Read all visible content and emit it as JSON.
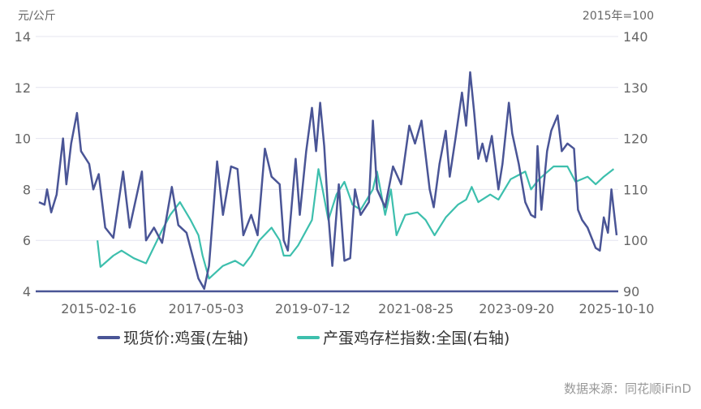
{
  "chart_data": {
    "type": "line",
    "left_unit": "元/公斤",
    "right_unit": "2015年=100",
    "left_ylim": [
      4,
      14
    ],
    "right_ylim": [
      90,
      140
    ],
    "left_ticks": [
      "14",
      "12",
      "10",
      "8",
      "6",
      "4"
    ],
    "right_ticks": [
      "140",
      "130",
      "120",
      "110",
      "100",
      "90"
    ],
    "x_ticks": [
      "2015-02-16",
      "2017-05-03",
      "2019-07-12",
      "2021-08-25",
      "2023-09-20",
      "2025-10-10"
    ],
    "xlim": [
      "2013-11-24",
      "2025-10-10"
    ],
    "grid": true,
    "legend_position": "bottom",
    "colors": {
      "price": "#4a5596",
      "index": "#3dbfad",
      "grid": "#e4e4ef",
      "text": "#666666"
    },
    "series": [
      {
        "name": "现货价:鸡蛋(左轴)",
        "axis": "left",
        "points": [
          [
            "2013-11-24",
            7.5
          ],
          [
            "2014-01-05",
            7.4
          ],
          [
            "2014-01-24",
            8.0
          ],
          [
            "2014-02-24",
            7.1
          ],
          [
            "2014-04-06",
            7.8
          ],
          [
            "2014-05-24",
            10.0
          ],
          [
            "2014-06-18",
            8.2
          ],
          [
            "2014-07-24",
            9.8
          ],
          [
            "2014-09-06",
            11.0
          ],
          [
            "2014-10-06",
            9.5
          ],
          [
            "2014-12-06",
            9.0
          ],
          [
            "2015-01-06",
            8.0
          ],
          [
            "2015-02-16",
            8.6
          ],
          [
            "2015-04-06",
            6.5
          ],
          [
            "2015-06-06",
            6.1
          ],
          [
            "2015-08-18",
            8.7
          ],
          [
            "2015-10-06",
            6.5
          ],
          [
            "2016-01-06",
            8.7
          ],
          [
            "2016-02-06",
            6.0
          ],
          [
            "2016-04-06",
            6.5
          ],
          [
            "2016-06-06",
            5.9
          ],
          [
            "2016-08-18",
            8.1
          ],
          [
            "2016-10-06",
            6.6
          ],
          [
            "2016-12-06",
            6.3
          ],
          [
            "2017-03-06",
            4.5
          ],
          [
            "2017-04-18",
            4.1
          ],
          [
            "2017-05-24",
            5.0
          ],
          [
            "2017-07-24",
            9.1
          ],
          [
            "2017-09-06",
            7.0
          ],
          [
            "2017-11-06",
            8.9
          ],
          [
            "2017-12-24",
            8.8
          ],
          [
            "2018-02-06",
            6.2
          ],
          [
            "2018-04-06",
            7.0
          ],
          [
            "2018-05-24",
            6.2
          ],
          [
            "2018-07-18",
            9.6
          ],
          [
            "2018-09-06",
            8.5
          ],
          [
            "2018-11-06",
            8.2
          ],
          [
            "2018-12-06",
            6.0
          ],
          [
            "2019-01-06",
            5.6
          ],
          [
            "2019-03-06",
            9.2
          ],
          [
            "2019-04-06",
            7.0
          ],
          [
            "2019-05-24",
            9.5
          ],
          [
            "2019-07-06",
            11.2
          ],
          [
            "2019-08-06",
            9.5
          ],
          [
            "2019-09-06",
            11.4
          ],
          [
            "2019-10-06",
            9.7
          ],
          [
            "2019-11-06",
            7.0
          ],
          [
            "2019-12-06",
            5.0
          ],
          [
            "2020-01-24",
            8.2
          ],
          [
            "2020-03-06",
            5.2
          ],
          [
            "2020-04-18",
            5.3
          ],
          [
            "2020-05-24",
            8.0
          ],
          [
            "2020-07-06",
            7.0
          ],
          [
            "2020-09-06",
            7.5
          ],
          [
            "2020-10-06",
            10.7
          ],
          [
            "2020-11-06",
            8.0
          ],
          [
            "2021-01-06",
            7.3
          ],
          [
            "2021-03-06",
            8.9
          ],
          [
            "2021-05-06",
            8.2
          ],
          [
            "2021-07-06",
            10.5
          ],
          [
            "2021-08-18",
            9.8
          ],
          [
            "2021-10-06",
            10.7
          ],
          [
            "2021-12-06",
            8.0
          ],
          [
            "2022-01-06",
            7.3
          ],
          [
            "2022-02-18",
            9.0
          ],
          [
            "2022-04-06",
            10.3
          ],
          [
            "2022-05-06",
            8.5
          ],
          [
            "2022-06-18",
            10.0
          ],
          [
            "2022-08-06",
            11.8
          ],
          [
            "2022-09-06",
            10.5
          ],
          [
            "2022-10-06",
            12.6
          ],
          [
            "2022-11-06",
            11.0
          ],
          [
            "2022-12-06",
            9.2
          ],
          [
            "2023-01-06",
            9.8
          ],
          [
            "2023-02-06",
            9.1
          ],
          [
            "2023-03-18",
            10.1
          ],
          [
            "2023-05-06",
            8.0
          ],
          [
            "2023-06-06",
            9.0
          ],
          [
            "2023-07-24",
            11.4
          ],
          [
            "2023-08-18",
            10.2
          ],
          [
            "2023-10-06",
            9.0
          ],
          [
            "2023-11-24",
            7.5
          ],
          [
            "2024-01-06",
            7.0
          ],
          [
            "2024-02-06",
            6.9
          ],
          [
            "2024-02-24",
            9.7
          ],
          [
            "2024-03-24",
            7.2
          ],
          [
            "2024-05-06",
            9.5
          ],
          [
            "2024-06-06",
            10.3
          ],
          [
            "2024-07-24",
            10.9
          ],
          [
            "2024-08-24",
            9.5
          ],
          [
            "2024-10-06",
            9.8
          ],
          [
            "2024-11-24",
            9.6
          ],
          [
            "2024-12-24",
            7.2
          ],
          [
            "2025-01-24",
            6.8
          ],
          [
            "2025-03-06",
            6.5
          ],
          [
            "2025-05-06",
            5.7
          ],
          [
            "2025-06-06",
            5.6
          ],
          [
            "2025-07-06",
            6.9
          ],
          [
            "2025-08-06",
            6.3
          ],
          [
            "2025-09-01",
            8.0
          ],
          [
            "2025-10-10",
            6.2
          ]
        ]
      },
      {
        "name": "产蛋鸡存栏指数:全国(右轴)",
        "axis": "right",
        "points": [
          [
            "2015-02-06",
            100
          ],
          [
            "2015-03-01",
            94.8
          ],
          [
            "2015-06-06",
            97
          ],
          [
            "2015-08-06",
            98
          ],
          [
            "2015-11-06",
            96.5
          ],
          [
            "2016-02-06",
            95.5
          ],
          [
            "2016-06-06",
            102
          ],
          [
            "2016-08-06",
            105
          ],
          [
            "2016-10-18",
            107.5
          ],
          [
            "2017-01-06",
            104
          ],
          [
            "2017-03-06",
            101
          ],
          [
            "2017-04-06",
            97
          ],
          [
            "2017-05-24",
            92.5
          ],
          [
            "2017-09-06",
            95
          ],
          [
            "2017-12-06",
            96
          ],
          [
            "2018-02-06",
            95
          ],
          [
            "2018-04-06",
            97
          ],
          [
            "2018-06-06",
            100
          ],
          [
            "2018-09-06",
            102.5
          ],
          [
            "2018-11-06",
            100
          ],
          [
            "2018-12-06",
            97
          ],
          [
            "2019-01-24",
            97
          ],
          [
            "2019-03-24",
            99
          ],
          [
            "2019-07-06",
            104
          ],
          [
            "2019-08-24",
            114
          ],
          [
            "2019-09-24",
            110
          ],
          [
            "2019-11-06",
            104
          ],
          [
            "2020-01-06",
            109
          ],
          [
            "2020-03-06",
            111.5
          ],
          [
            "2020-05-06",
            107
          ],
          [
            "2020-07-06",
            106
          ],
          [
            "2020-10-06",
            110
          ],
          [
            "2020-11-06",
            113.5
          ],
          [
            "2021-01-06",
            105
          ],
          [
            "2021-02-18",
            110
          ],
          [
            "2021-04-01",
            101
          ],
          [
            "2021-06-06",
            105
          ],
          [
            "2021-09-06",
            105.5
          ],
          [
            "2021-11-06",
            104
          ],
          [
            "2022-01-12",
            101
          ],
          [
            "2022-04-06",
            104.5
          ],
          [
            "2022-07-06",
            107
          ],
          [
            "2022-09-06",
            108
          ],
          [
            "2022-10-18",
            110.5
          ],
          [
            "2022-12-06",
            107.5
          ],
          [
            "2023-03-06",
            109
          ],
          [
            "2023-05-06",
            108
          ],
          [
            "2023-08-06",
            112
          ],
          [
            "2023-11-24",
            113.5
          ],
          [
            "2024-01-06",
            110
          ],
          [
            "2024-03-06",
            112
          ],
          [
            "2024-06-24",
            114.5
          ],
          [
            "2024-10-06",
            114.5
          ],
          [
            "2024-12-06",
            111.5
          ],
          [
            "2025-03-06",
            112.5
          ],
          [
            "2025-05-06",
            111
          ],
          [
            "2025-07-06",
            112.5
          ],
          [
            "2025-09-18",
            114
          ]
        ]
      }
    ]
  },
  "source": "数据来源：同花顺iFinD"
}
